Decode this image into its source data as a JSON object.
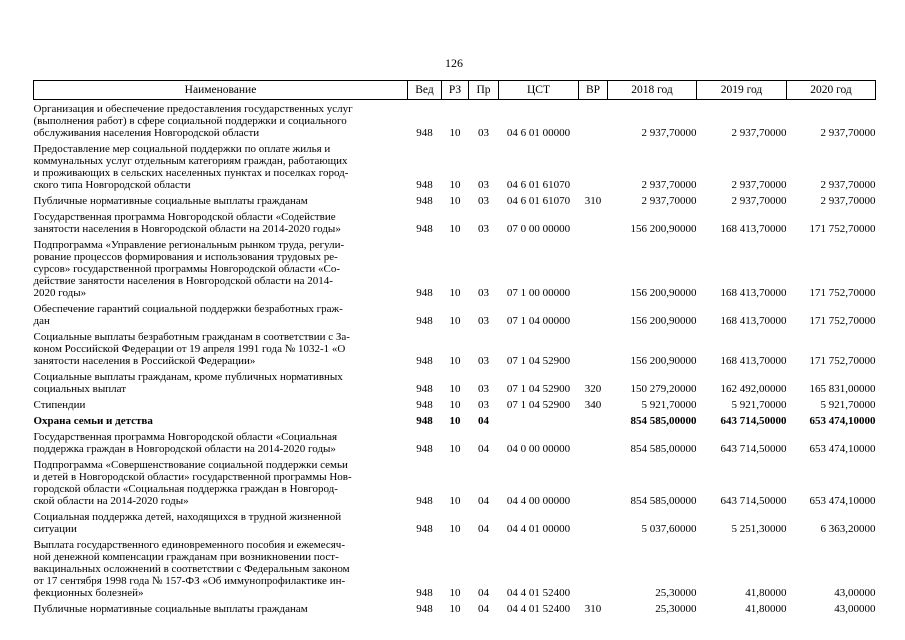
{
  "page_number": "126",
  "table": {
    "headers": [
      "Наименование",
      "Вед",
      "РЗ",
      "Пр",
      "ЦСТ",
      "ВР",
      "2018 год",
      "2019 год",
      "2020 год"
    ],
    "rows": [
      {
        "name": "Организация и обеспечение предоставления государственных услуг\n(выполнения работ) в сфере социальной поддержки и социального\nобслуживания населения Новгородской области",
        "ved": "948",
        "rz": "10",
        "pr": "03",
        "cst": "04 6 01 00000",
        "vr": "",
        "y2018": "2 937,70000",
        "y2019": "2 937,70000",
        "y2020": "2 937,70000",
        "bold": false
      },
      {
        "name": "Предоставление мер социальной поддержки по оплате жилья и\nкоммунальных услуг отдельным категориям граждан, работающих\nи проживающих в сельских населенных пунктах и поселках город-\nского типа Новгородской области",
        "ved": "948",
        "rz": "10",
        "pr": "03",
        "cst": "04 6 01 61070",
        "vr": "",
        "y2018": "2 937,70000",
        "y2019": "2 937,70000",
        "y2020": "2 937,70000",
        "bold": false
      },
      {
        "name": "Публичные нормативные социальные выплаты гражданам",
        "ved": "948",
        "rz": "10",
        "pr": "03",
        "cst": "04 6 01 61070",
        "vr": "310",
        "y2018": "2 937,70000",
        "y2019": "2 937,70000",
        "y2020": "2 937,70000",
        "bold": false
      },
      {
        "name": "Государственная программа Новгородской области «Содействие\nзанятости населения в Новгородской области на 2014-2020 годы»",
        "ved": "948",
        "rz": "10",
        "pr": "03",
        "cst": "07 0 00 00000",
        "vr": "",
        "y2018": "156 200,90000",
        "y2019": "168 413,70000",
        "y2020": "171 752,70000",
        "bold": false
      },
      {
        "name": "Подпрограмма «Управление региональным рынком труда, регули-\nрование процессов формирования и использования трудовых ре-\nсурсов» государственной программы Новгородской области «Со-\nдействие занятости населения в Новгородской области на 2014-\n2020 годы»",
        "ved": "948",
        "rz": "10",
        "pr": "03",
        "cst": "07 1 00 00000",
        "vr": "",
        "y2018": "156 200,90000",
        "y2019": "168 413,70000",
        "y2020": "171 752,70000",
        "bold": false
      },
      {
        "name": "Обеспечение гарантий социальной поддержки безработных граж-\nдан",
        "ved": "948",
        "rz": "10",
        "pr": "03",
        "cst": "07 1 04 00000",
        "vr": "",
        "y2018": "156 200,90000",
        "y2019": "168 413,70000",
        "y2020": "171 752,70000",
        "bold": false
      },
      {
        "name": "Социальные выплаты безработным гражданам в соответствии с За-\nконом Российской Федерации от 19 апреля 1991 года № 1032-1 «О\nзанятости населения в Российской Федерации»",
        "ved": "948",
        "rz": "10",
        "pr": "03",
        "cst": "07 1 04 52900",
        "vr": "",
        "y2018": "156 200,90000",
        "y2019": "168 413,70000",
        "y2020": "171 752,70000",
        "bold": false
      },
      {
        "name": "Социальные выплаты гражданам, кроме публичных нормативных\nсоциальных выплат",
        "ved": "948",
        "rz": "10",
        "pr": "03",
        "cst": "07 1 04 52900",
        "vr": "320",
        "y2018": "150 279,20000",
        "y2019": "162 492,00000",
        "y2020": "165 831,00000",
        "bold": false
      },
      {
        "name": "Стипендии",
        "ved": "948",
        "rz": "10",
        "pr": "03",
        "cst": "07 1 04 52900",
        "vr": "340",
        "y2018": "5 921,70000",
        "y2019": "5 921,70000",
        "y2020": "5 921,70000",
        "bold": false
      },
      {
        "name": "Охрана семьи и детства",
        "ved": "948",
        "rz": "10",
        "pr": "04",
        "cst": "",
        "vr": "",
        "y2018": "854 585,00000",
        "y2019": "643 714,50000",
        "y2020": "653 474,10000",
        "bold": true
      },
      {
        "name": "Государственная программа Новгородской области «Социальная\nподдержка граждан в Новгородской области на 2014-2020 годы»",
        "ved": "948",
        "rz": "10",
        "pr": "04",
        "cst": "04 0 00 00000",
        "vr": "",
        "y2018": "854 585,00000",
        "y2019": "643 714,50000",
        "y2020": "653 474,10000",
        "bold": false
      },
      {
        "name": "Подпрограмма «Совершенствование социальной поддержки семьи\nи детей в Новгородской области» государственной программы Нов-\nгородской области «Социальная поддержка граждан в Новгород-\nской области на 2014-2020 годы»",
        "ved": "948",
        "rz": "10",
        "pr": "04",
        "cst": "04 4 00 00000",
        "vr": "",
        "y2018": "854 585,00000",
        "y2019": "643 714,50000",
        "y2020": "653 474,10000",
        "bold": false
      },
      {
        "name": "Социальная поддержка детей, находящихся в трудной жизненной\nситуации",
        "ved": "948",
        "rz": "10",
        "pr": "04",
        "cst": "04 4 01 00000",
        "vr": "",
        "y2018": "5 037,60000",
        "y2019": "5 251,30000",
        "y2020": "6 363,20000",
        "bold": false
      },
      {
        "name": "Выплата государственного единовременного пособия и ежемесяч-\nной денежной компенсации гражданам при возникновении пост-\nвакцинальных осложнений в соответствии с Федеральным законом\nот 17 сентября 1998 года № 157-ФЗ «Об иммунопрофилактике ин-\nфекционных болезней»",
        "ved": "948",
        "rz": "10",
        "pr": "04",
        "cst": "04 4 01 52400",
        "vr": "",
        "y2018": "25,30000",
        "y2019": "41,80000",
        "y2020": "43,00000",
        "bold": false
      },
      {
        "name": "Публичные нормативные социальные выплаты гражданам",
        "ved": "948",
        "rz": "10",
        "pr": "04",
        "cst": "04 4 01 52400",
        "vr": "310",
        "y2018": "25,30000",
        "y2019": "41,80000",
        "y2020": "43,00000",
        "bold": false
      }
    ]
  }
}
